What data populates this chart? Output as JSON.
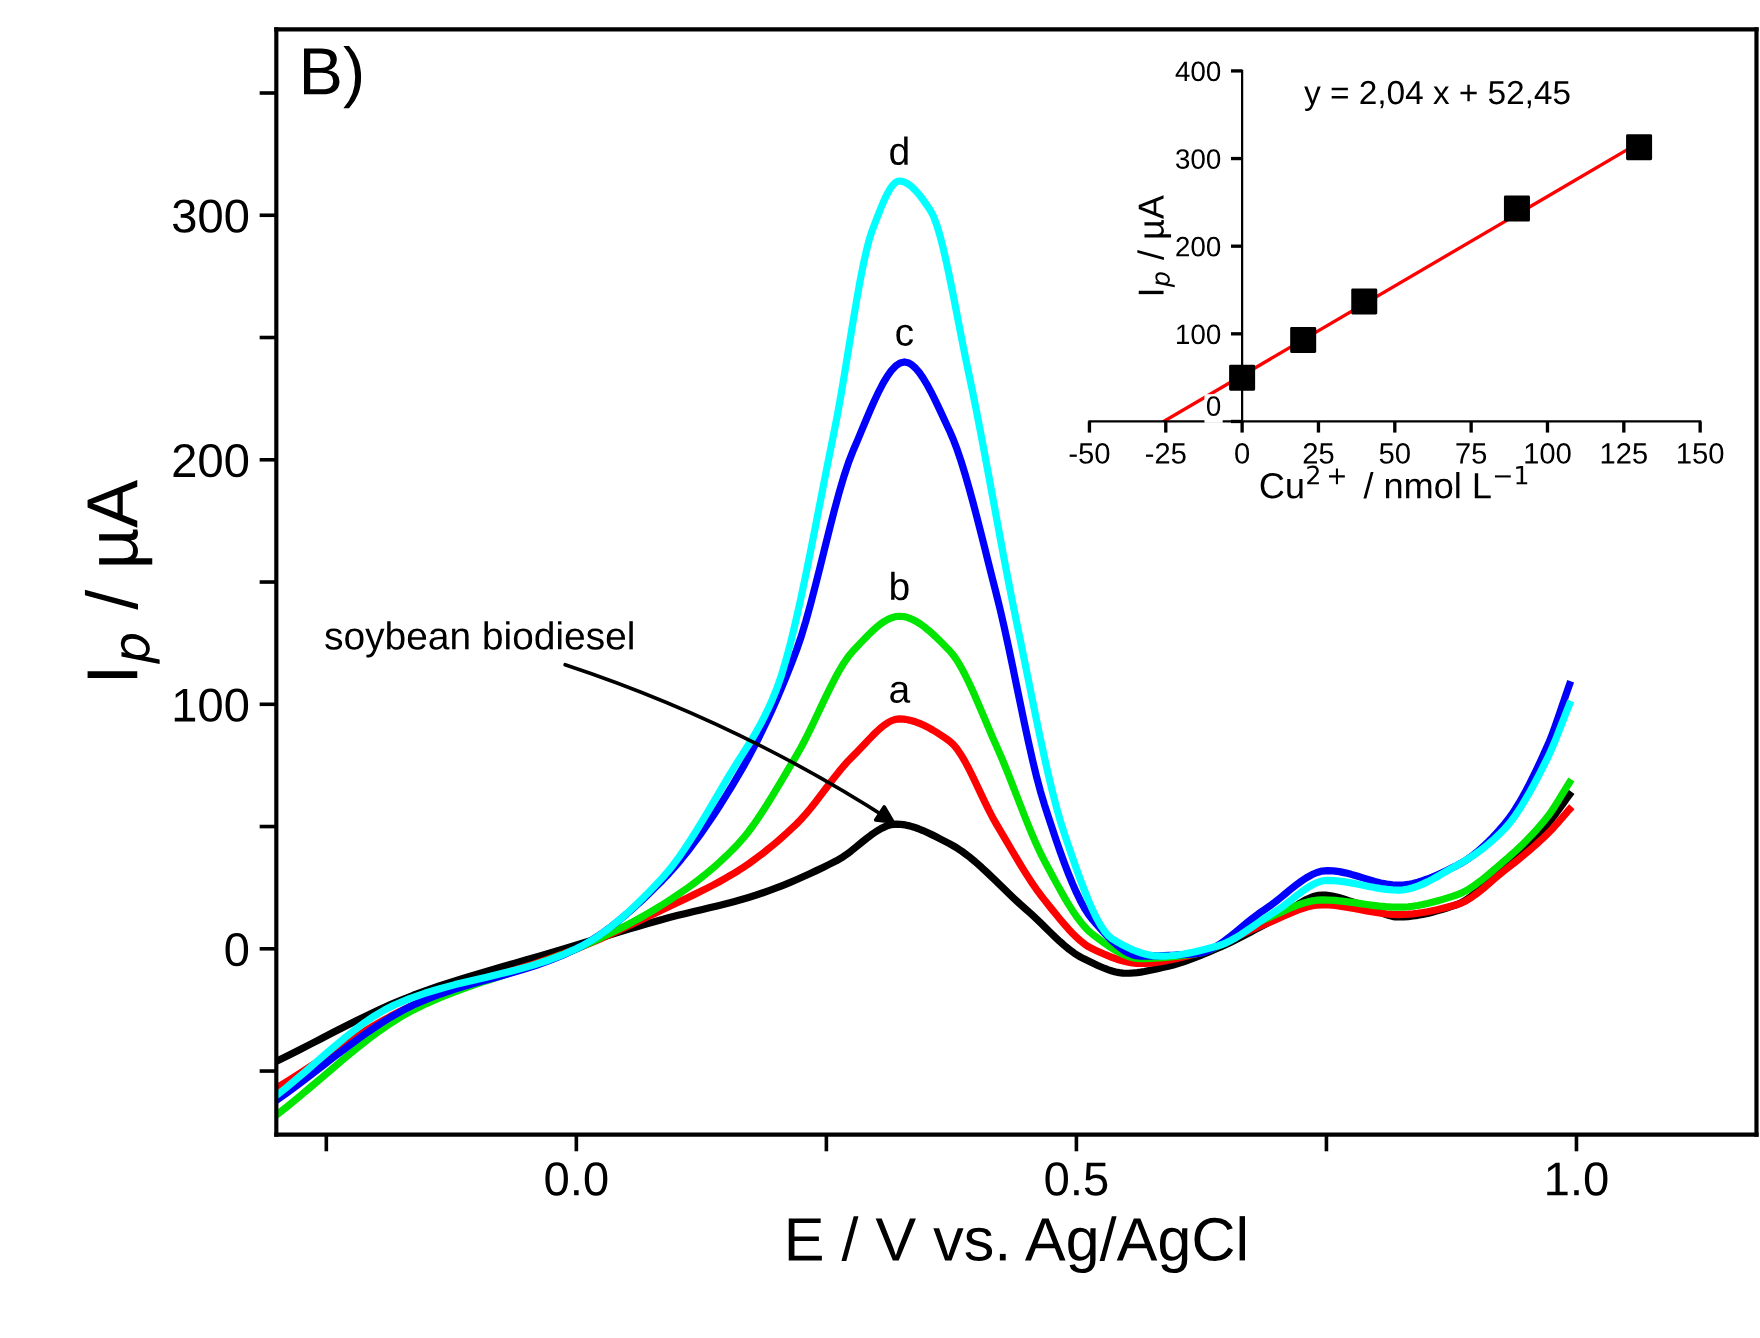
{
  "chart_data": [
    {
      "type": "line",
      "xlabel": "E / V vs. Ag/AgCl",
      "ylabel": "I$_{p}$ / µA",
      "xlim": [
        -0.3,
        1.18
      ],
      "ylim": [
        -76,
        376
      ],
      "xticks": [
        {
          "value": -0.25,
          "label": null
        },
        {
          "value": 0,
          "label": "0.0"
        },
        {
          "value": 0.25,
          "label": null
        },
        {
          "value": 0.5,
          "label": "0.5"
        },
        {
          "value": 0.75,
          "label": null
        },
        {
          "value": 1,
          "label": "1.0"
        }
      ],
      "yticks": [
        {
          "value": -50,
          "label": null
        },
        0,
        {
          "value": 50,
          "label": null
        },
        100,
        {
          "value": 150,
          "label": null
        },
        200,
        {
          "value": 250,
          "label": null
        },
        300,
        {
          "value": 350,
          "label": null
        }
      ],
      "grid": false,
      "annotations": [
        "B)",
        {
          "text": "soybean biodiesel",
          "x": 0.32,
          "y": 51
        },
        {
          "text": "a",
          "x": 0.323,
          "y": 94
        },
        {
          "text": "b",
          "x": 0.323,
          "y": 136
        },
        {
          "text": "c",
          "x": 0.328,
          "y": 240
        },
        {
          "text": "d",
          "x": 0.323,
          "y": 314
        }
      ],
      "series": [
        {
          "color": "#000000",
          "x": [
            -0.3,
            -0.163,
            -0.012,
            0.086,
            0.18,
            0.26,
            0.32,
            0.373,
            0.45,
            0.507,
            0.55,
            0.593,
            0.64,
            0.698,
            0.746,
            0.785,
            0.822,
            0.88,
            0.928,
            0.971,
            0.993
          ],
          "values": [
            -46,
            -19,
            0,
            12,
            22,
            36,
            51,
            43,
            16,
            -4,
            -10,
            -7,
            0,
            12,
            22,
            18,
            13,
            18,
            34,
            51,
            63
          ]
        },
        {
          "color": "#ff0000",
          "x": [
            -0.3,
            -0.163,
            0,
            0.086,
            0.162,
            0.22,
            0.277,
            0.323,
            0.373,
            0.42,
            0.468,
            0.516,
            0.564,
            0.62,
            0.688,
            0.746,
            0.822,
            0.88,
            0.928,
            0.971,
            0.993
          ],
          "values": [
            -57,
            -23,
            0,
            16,
            32,
            51,
            79,
            94,
            85,
            51,
            20,
            0,
            -6,
            -2,
            10,
            18,
            14,
            18,
            32,
            47,
            57
          ]
        },
        {
          "color": "#00e600",
          "x": [
            -0.3,
            -0.163,
            0,
            0.086,
            0.162,
            0.22,
            0.277,
            0.323,
            0.373,
            0.42,
            0.468,
            0.516,
            0.564,
            0.62,
            0.688,
            0.746,
            0.822,
            0.88,
            0.928,
            0.971,
            0.993
          ],
          "values": [
            -68,
            -25,
            0,
            18,
            43,
            79,
            122,
            136,
            122,
            83,
            36,
            6,
            -4,
            -2,
            12,
            20,
            17,
            22,
            36,
            54,
            68
          ]
        },
        {
          "color": "#0000ff",
          "x": [
            -0.3,
            -0.163,
            0,
            0.086,
            0.162,
            0.22,
            0.277,
            0.328,
            0.373,
            0.42,
            0.468,
            0.516,
            0.564,
            0.62,
            0.688,
            0.751,
            0.822,
            0.88,
            0.928,
            0.971,
            0.993
          ],
          "values": [
            -62,
            -23,
            0,
            28,
            71,
            122,
            204,
            240,
            212,
            145,
            59,
            12,
            -3,
            -2,
            16,
            32,
            26,
            34,
            51,
            83,
            108
          ]
        },
        {
          "color": "#00ffff",
          "x": [
            -0.3,
            -0.182,
            0,
            0.086,
            0.153,
            0.2,
            0.258,
            0.296,
            0.323,
            0.354,
            0.392,
            0.44,
            0.488,
            0.536,
            0.584,
            0.64,
            0.698,
            0.751,
            0.822,
            0.88,
            0.928,
            0.971,
            0.993
          ],
          "values": [
            -60,
            -23,
            0,
            29,
            71,
            106,
            212,
            294,
            314,
            302,
            236,
            134,
            47,
            4,
            -3,
            1,
            15,
            28,
            24,
            34,
            49,
            78,
            100
          ]
        }
      ]
    },
    {
      "type": "scatter",
      "xlabel": "Cu$^{2+}$ / nmol L$^{−1}$",
      "ylabel": "I$_{p}$ / µA",
      "xlim": [
        -50,
        150
      ],
      "ylim": [
        0,
        400
      ],
      "xticks": [
        -50,
        -25,
        0,
        25,
        50,
        75,
        100,
        125,
        150
      ],
      "yticks": [
        0,
        100,
        200,
        300,
        400
      ],
      "grid": false,
      "annotations": [
        "y = 2,04 x + 52,45"
      ],
      "series": [
        {
          "type": "scatter",
          "color": "#000000",
          "marker": "square",
          "x": [
            0,
            20,
            40,
            90,
            130
          ],
          "values": [
            50,
            93,
            137,
            243,
            313
          ]
        },
        {
          "type": "line",
          "color": "#ff0000",
          "x": [
            -25.7,
            130
          ],
          "values": [
            0,
            318
          ]
        }
      ]
    }
  ]
}
